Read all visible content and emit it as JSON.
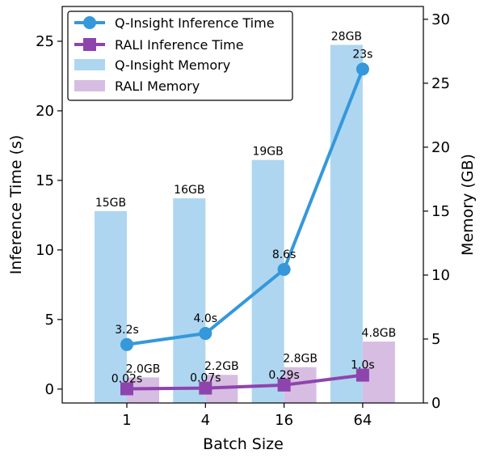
{
  "chart_data": {
    "type": "bar+line",
    "categories": [
      "1",
      "4",
      "16",
      "64"
    ],
    "xlabel": "Batch Size",
    "ylabel_left": "Inference Time (s)",
    "ylabel_right": "Memory (GB)",
    "ylim_left": [
      -1,
      27.5
    ],
    "ylim_right": [
      0,
      31
    ],
    "yticks_left": [
      0,
      5,
      10,
      15,
      20,
      25
    ],
    "yticks_right": [
      0,
      5,
      10,
      15,
      20,
      25,
      30
    ],
    "bar_series": [
      {
        "name": "Q-Insight Memory",
        "axis": "right",
        "color": "#aed6f1",
        "values": [
          15,
          16,
          19,
          28
        ],
        "labels": [
          "15GB",
          "16GB",
          "19GB",
          "28GB"
        ]
      },
      {
        "name": "RALI Memory",
        "axis": "right",
        "color": "#d7bde2",
        "values": [
          2.0,
          2.2,
          2.8,
          4.8
        ],
        "labels": [
          "2.0GB",
          "2.2GB",
          "2.8GB",
          "4.8GB"
        ]
      }
    ],
    "line_series": [
      {
        "name": "Q-Insight Inference Time",
        "axis": "left",
        "color": "#3498db",
        "marker": "circle",
        "values": [
          3.2,
          4.0,
          8.6,
          23
        ],
        "labels": [
          "3.2s",
          "4.0s",
          "8.6s",
          "23s"
        ]
      },
      {
        "name": "RALI Inference Time",
        "axis": "left",
        "color": "#8e44ad",
        "marker": "square",
        "values": [
          0.02,
          0.07,
          0.29,
          1.0
        ],
        "labels": [
          "0.02s",
          "0.07s",
          "0.29s",
          "1.0s"
        ]
      }
    ],
    "legend": {
      "position": "top-left",
      "entries": [
        "Q-Insight Inference Time",
        "RALI Inference Time",
        "Q-Insight Memory",
        "RALI Memory"
      ]
    },
    "grid": false
  }
}
